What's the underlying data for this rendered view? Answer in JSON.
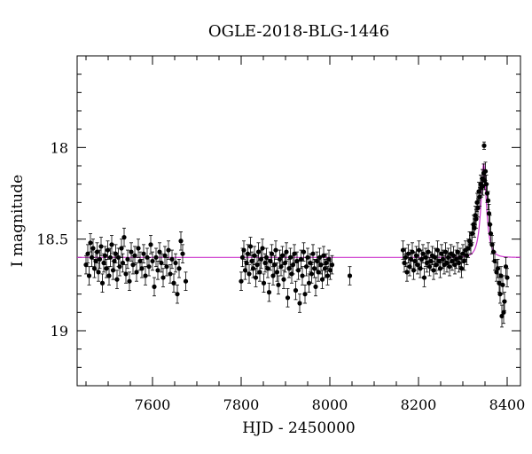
{
  "chart_data": {
    "type": "scatter",
    "title": "OGLE-2018-BLG-1446",
    "xlabel": "HJD - 2450000",
    "ylabel": "I magnitude",
    "xlim": [
      7430,
      8430
    ],
    "ylim": [
      19.3,
      17.5
    ],
    "y_inverted": true,
    "x_ticks": [
      7600,
      7800,
      8000,
      8200,
      8400
    ],
    "x_tick_labels": [
      "7600",
      "7800",
      "8000",
      "8200",
      "8400"
    ],
    "y_ticks": [
      18,
      18.5,
      19
    ],
    "y_tick_labels": [
      "18",
      "18.5",
      "19"
    ],
    "grid": false,
    "colors": {
      "points": "#000000",
      "model": "#cc33cc"
    },
    "model": {
      "type": "microlensing",
      "baseline_mag": 18.6,
      "t0": 8347,
      "u0": 0.41,
      "tE": 13,
      "peak_mag": 18.09
    },
    "series": [
      {
        "type": "scatter_with_errorbars",
        "points": [
          [
            7450,
            18.64,
            0.05
          ],
          [
            7454,
            18.58,
            0.05
          ],
          [
            7457,
            18.7,
            0.05
          ],
          [
            7460,
            18.52,
            0.05
          ],
          [
            7463,
            18.6,
            0.05
          ],
          [
            7466,
            18.55,
            0.05
          ],
          [
            7469,
            18.66,
            0.05
          ],
          [
            7472,
            18.62,
            0.05
          ],
          [
            7475,
            18.57,
            0.05
          ],
          [
            7478,
            18.68,
            0.05
          ],
          [
            7481,
            18.61,
            0.05
          ],
          [
            7484,
            18.54,
            0.05
          ],
          [
            7487,
            18.74,
            0.05
          ],
          [
            7490,
            18.63,
            0.05
          ],
          [
            7493,
            18.59,
            0.05
          ],
          [
            7496,
            18.66,
            0.05
          ],
          [
            7499,
            18.56,
            0.05
          ],
          [
            7502,
            18.7,
            0.05
          ],
          [
            7505,
            18.6,
            0.05
          ],
          [
            7508,
            18.53,
            0.05
          ],
          [
            7511,
            18.67,
            0.05
          ],
          [
            7514,
            18.62,
            0.05
          ],
          [
            7517,
            18.58,
            0.05
          ],
          [
            7520,
            18.72,
            0.05
          ],
          [
            7523,
            18.6,
            0.05
          ],
          [
            7526,
            18.65,
            0.05
          ],
          [
            7530,
            18.55,
            0.05
          ],
          [
            7533,
            18.63,
            0.05
          ],
          [
            7536,
            18.49,
            0.05
          ],
          [
            7540,
            18.69,
            0.05
          ],
          [
            7544,
            18.61,
            0.05
          ],
          [
            7548,
            18.73,
            0.05
          ],
          [
            7552,
            18.57,
            0.05
          ],
          [
            7556,
            18.64,
            0.05
          ],
          [
            7560,
            18.59,
            0.05
          ],
          [
            7564,
            18.68,
            0.05
          ],
          [
            7568,
            18.55,
            0.05
          ],
          [
            7572,
            18.62,
            0.05
          ],
          [
            7576,
            18.66,
            0.05
          ],
          [
            7580,
            18.58,
            0.05
          ],
          [
            7584,
            18.7,
            0.05
          ],
          [
            7588,
            18.6,
            0.05
          ],
          [
            7592,
            18.65,
            0.05
          ],
          [
            7596,
            18.53,
            0.05
          ],
          [
            7600,
            18.62,
            0.05
          ],
          [
            7604,
            18.76,
            0.05
          ],
          [
            7608,
            18.6,
            0.05
          ],
          [
            7612,
            18.67,
            0.05
          ],
          [
            7616,
            18.57,
            0.05
          ],
          [
            7620,
            18.63,
            0.05
          ],
          [
            7624,
            18.71,
            0.05
          ],
          [
            7628,
            18.59,
            0.05
          ],
          [
            7632,
            18.65,
            0.05
          ],
          [
            7636,
            18.56,
            0.05
          ],
          [
            7640,
            18.69,
            0.05
          ],
          [
            7644,
            18.61,
            0.05
          ],
          [
            7648,
            18.74,
            0.05
          ],
          [
            7652,
            18.63,
            0.05
          ],
          [
            7656,
            18.8,
            0.05
          ],
          [
            7660,
            18.66,
            0.05
          ],
          [
            7664,
            18.51,
            0.05
          ],
          [
            7668,
            18.58,
            0.05
          ],
          [
            7675,
            18.73,
            0.05
          ],
          [
            7800,
            18.73,
            0.05
          ],
          [
            7803,
            18.6,
            0.05
          ],
          [
            7806,
            18.56,
            0.05
          ],
          [
            7809,
            18.67,
            0.05
          ],
          [
            7812,
            18.63,
            0.05
          ],
          [
            7815,
            18.58,
            0.05
          ],
          [
            7818,
            18.69,
            0.05
          ],
          [
            7821,
            18.54,
            0.05
          ],
          [
            7824,
            18.62,
            0.05
          ],
          [
            7827,
            18.66,
            0.05
          ],
          [
            7830,
            18.59,
            0.05
          ],
          [
            7833,
            18.71,
            0.05
          ],
          [
            7836,
            18.64,
            0.05
          ],
          [
            7839,
            18.57,
            0.05
          ],
          [
            7842,
            18.68,
            0.05
          ],
          [
            7845,
            18.61,
            0.05
          ],
          [
            7848,
            18.55,
            0.05
          ],
          [
            7851,
            18.74,
            0.05
          ],
          [
            7854,
            18.63,
            0.05
          ],
          [
            7857,
            18.6,
            0.05
          ],
          [
            7860,
            18.66,
            0.05
          ],
          [
            7863,
            18.79,
            0.05
          ],
          [
            7866,
            18.62,
            0.05
          ],
          [
            7869,
            18.58,
            0.05
          ],
          [
            7872,
            18.7,
            0.05
          ],
          [
            7875,
            18.64,
            0.05
          ],
          [
            7878,
            18.56,
            0.05
          ],
          [
            7881,
            18.68,
            0.05
          ],
          [
            7884,
            18.75,
            0.05
          ],
          [
            7887,
            18.61,
            0.05
          ],
          [
            7890,
            18.65,
            0.05
          ],
          [
            7893,
            18.59,
            0.05
          ],
          [
            7896,
            18.72,
            0.05
          ],
          [
            7899,
            18.63,
            0.05
          ],
          [
            7902,
            18.57,
            0.05
          ],
          [
            7905,
            18.82,
            0.05
          ],
          [
            7908,
            18.66,
            0.05
          ],
          [
            7911,
            18.6,
            0.05
          ],
          [
            7914,
            18.69,
            0.05
          ],
          [
            7917,
            18.64,
            0.05
          ],
          [
            7920,
            18.58,
            0.05
          ],
          [
            7923,
            18.78,
            0.05
          ],
          [
            7926,
            18.62,
            0.05
          ],
          [
            7929,
            18.67,
            0.05
          ],
          [
            7932,
            18.85,
            0.05
          ],
          [
            7935,
            18.61,
            0.05
          ],
          [
            7938,
            18.7,
            0.05
          ],
          [
            7941,
            18.57,
            0.05
          ],
          [
            7944,
            18.8,
            0.05
          ],
          [
            7947,
            18.65,
            0.05
          ],
          [
            7950,
            18.6,
            0.05
          ],
          [
            7953,
            18.74,
            0.05
          ],
          [
            7956,
            18.63,
            0.05
          ],
          [
            7959,
            18.69,
            0.05
          ],
          [
            7962,
            18.58,
            0.05
          ],
          [
            7965,
            18.66,
            0.05
          ],
          [
            7968,
            18.76,
            0.05
          ],
          [
            7971,
            18.62,
            0.05
          ],
          [
            7974,
            18.68,
            0.05
          ],
          [
            7977,
            18.6,
            0.05
          ],
          [
            7980,
            18.64,
            0.05
          ],
          [
            7983,
            18.72,
            0.05
          ],
          [
            7986,
            18.59,
            0.05
          ],
          [
            7989,
            18.66,
            0.05
          ],
          [
            7992,
            18.63,
            0.05
          ],
          [
            7995,
            18.7,
            0.05
          ],
          [
            7998,
            18.61,
            0.05
          ],
          [
            8001,
            18.67,
            0.05
          ],
          [
            8005,
            18.64,
            0.05
          ],
          [
            8045,
            18.7,
            0.05
          ],
          [
            8165,
            18.56,
            0.05
          ],
          [
            8168,
            18.63,
            0.05
          ],
          [
            8171,
            18.6,
            0.05
          ],
          [
            8174,
            18.68,
            0.05
          ],
          [
            8177,
            18.58,
            0.05
          ],
          [
            8180,
            18.65,
            0.05
          ],
          [
            8183,
            18.61,
            0.05
          ],
          [
            8186,
            18.57,
            0.05
          ],
          [
            8189,
            18.67,
            0.05
          ],
          [
            8192,
            18.62,
            0.05
          ],
          [
            8195,
            18.59,
            0.05
          ],
          [
            8198,
            18.64,
            0.05
          ],
          [
            8201,
            18.56,
            0.05
          ],
          [
            8204,
            18.66,
            0.05
          ],
          [
            8207,
            18.61,
            0.05
          ],
          [
            8210,
            18.58,
            0.05
          ],
          [
            8213,
            18.71,
            0.05
          ],
          [
            8216,
            18.6,
            0.05
          ],
          [
            8219,
            18.63,
            0.05
          ],
          [
            8222,
            18.57,
            0.05
          ],
          [
            8225,
            18.65,
            0.05
          ],
          [
            8228,
            18.62,
            0.05
          ],
          [
            8231,
            18.59,
            0.05
          ],
          [
            8234,
            18.67,
            0.05
          ],
          [
            8237,
            18.6,
            0.05
          ],
          [
            8240,
            18.64,
            0.05
          ],
          [
            8243,
            18.56,
            0.05
          ],
          [
            8246,
            18.62,
            0.05
          ],
          [
            8249,
            18.66,
            0.05
          ],
          [
            8252,
            18.58,
            0.05
          ],
          [
            8255,
            18.61,
            0.05
          ],
          [
            8258,
            18.64,
            0.05
          ],
          [
            8261,
            18.57,
            0.05
          ],
          [
            8264,
            18.63,
            0.05
          ],
          [
            8267,
            18.6,
            0.05
          ],
          [
            8270,
            18.65,
            0.05
          ],
          [
            8273,
            18.58,
            0.05
          ],
          [
            8276,
            18.62,
            0.05
          ],
          [
            8279,
            18.59,
            0.05
          ],
          [
            8282,
            18.64,
            0.05
          ],
          [
            8285,
            18.61,
            0.05
          ],
          [
            8288,
            18.57,
            0.05
          ],
          [
            8291,
            18.63,
            0.05
          ],
          [
            8294,
            18.6,
            0.05
          ],
          [
            8297,
            18.66,
            0.05
          ],
          [
            8300,
            18.58,
            0.05
          ],
          [
            8303,
            18.62,
            0.05
          ],
          [
            8306,
            18.56,
            0.05
          ],
          [
            8309,
            18.59,
            0.05
          ],
          [
            8312,
            18.55,
            0.05
          ],
          [
            8315,
            18.51,
            0.05
          ],
          [
            8318,
            18.53,
            0.05
          ],
          [
            8321,
            18.47,
            0.05
          ],
          [
            8324,
            18.42,
            0.05
          ],
          [
            8326,
            18.44,
            0.05
          ],
          [
            8328,
            18.37,
            0.05
          ],
          [
            8330,
            18.39,
            0.05
          ],
          [
            8332,
            18.3,
            0.05
          ],
          [
            8334,
            18.33,
            0.05
          ],
          [
            8336,
            18.24,
            0.05
          ],
          [
            8338,
            18.27,
            0.05
          ],
          [
            8340,
            18.2,
            0.05
          ],
          [
            8342,
            18.22,
            0.05
          ],
          [
            8344,
            18.17,
            0.05
          ],
          [
            8345,
            18.21,
            0.05
          ],
          [
            8347,
            18.14,
            0.05
          ],
          [
            8348,
            17.99,
            0.02
          ],
          [
            8349,
            18.18,
            0.05
          ],
          [
            8351,
            18.13,
            0.05
          ],
          [
            8353,
            18.2,
            0.05
          ],
          [
            8355,
            18.25,
            0.05
          ],
          [
            8357,
            18.29,
            0.05
          ],
          [
            8359,
            18.36,
            0.05
          ],
          [
            8361,
            18.42,
            0.05
          ],
          [
            8363,
            18.47,
            0.05
          ],
          [
            8366,
            18.53,
            0.05
          ],
          [
            8369,
            18.57,
            0.05
          ],
          [
            8372,
            18.62,
            0.05
          ],
          [
            8376,
            18.68,
            0.05
          ],
          [
            8379,
            18.66,
            0.05
          ],
          [
            8382,
            18.74,
            0.05
          ],
          [
            8384,
            18.8,
            0.05
          ],
          [
            8386,
            18.7,
            0.05
          ],
          [
            8388,
            18.92,
            0.06
          ],
          [
            8390,
            18.75,
            0.05
          ],
          [
            8392,
            18.9,
            0.06
          ],
          [
            8394,
            18.84,
            0.05
          ],
          [
            8397,
            18.65,
            0.05
          ],
          [
            8400,
            18.71,
            0.05
          ]
        ]
      }
    ]
  }
}
